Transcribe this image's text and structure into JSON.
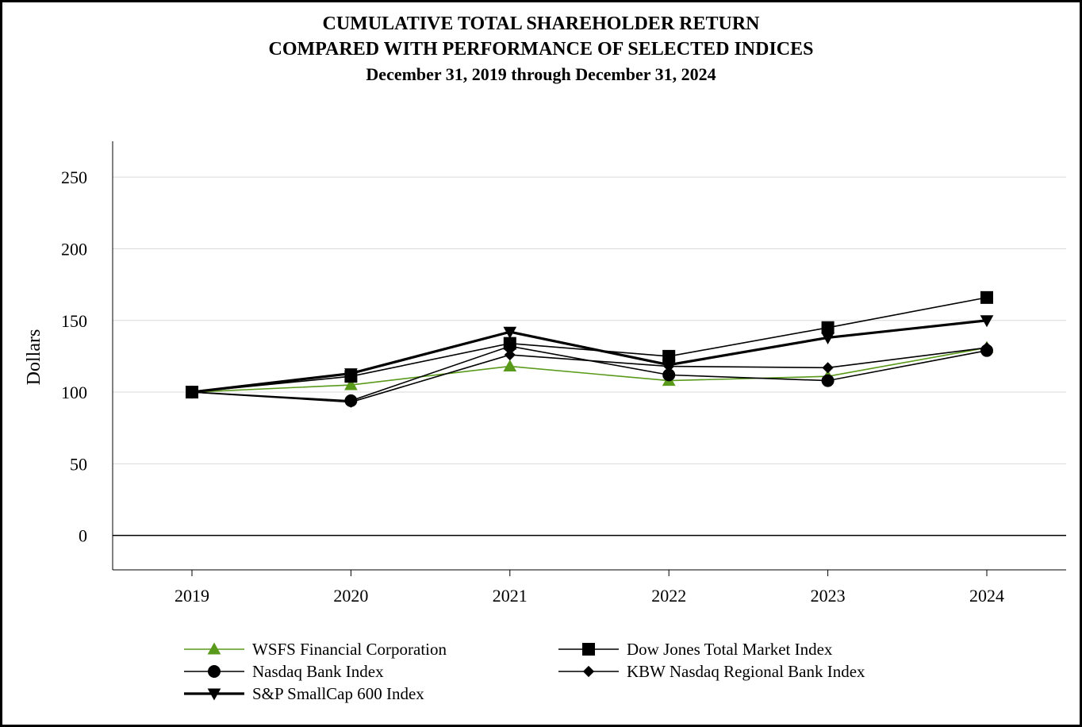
{
  "chart_data": {
    "type": "line",
    "title_lines": [
      "CUMULATIVE TOTAL SHAREHOLDER RETURN",
      "COMPARED WITH PERFORMANCE OF SELECTED INDICES"
    ],
    "subtitle": "December 31, 2019 through December 31, 2024",
    "xlabel": "",
    "ylabel": "Dollars",
    "categories": [
      "2019",
      "2020",
      "2021",
      "2022",
      "2023",
      "2024"
    ],
    "yticks": [
      "0",
      "50",
      "100",
      "150",
      "200",
      "250"
    ],
    "ylim": [
      -24,
      275
    ],
    "grid": true,
    "legend_position": "bottom",
    "series": [
      {
        "name": "WSFS Financial Corporation",
        "values": [
          100,
          105,
          118,
          108,
          111,
          131
        ],
        "color": "#5a9a1a",
        "marker": "triangle-up",
        "line": "thin"
      },
      {
        "name": "Dow Jones Total Market Index",
        "values": [
          100,
          111,
          134,
          125,
          145,
          166
        ],
        "color": "#000000",
        "marker": "square",
        "line": "thin"
      },
      {
        "name": "Nasdaq Bank Index",
        "values": [
          100,
          94,
          132,
          112,
          108,
          129
        ],
        "color": "#000000",
        "marker": "circle",
        "line": "thin"
      },
      {
        "name": "KBW Nasdaq Regional Bank Index",
        "values": [
          100,
          93,
          126,
          118,
          117,
          131
        ],
        "color": "#000000",
        "marker": "diamond",
        "line": "thin"
      },
      {
        "name": "S&P SmallCap 600 Index",
        "values": [
          100,
          113,
          142,
          119,
          138,
          150
        ],
        "color": "#000000",
        "marker": "triangle-down",
        "line": "thick"
      }
    ]
  }
}
